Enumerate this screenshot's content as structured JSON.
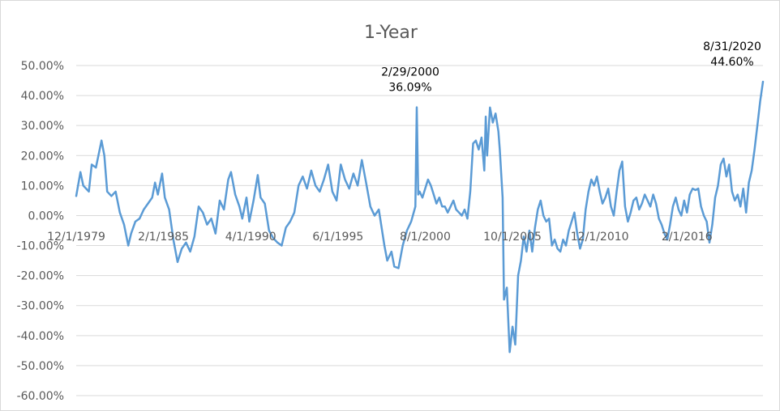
{
  "chart_data": {
    "type": "line",
    "title": "1-Year",
    "xlabel": "",
    "ylabel": "",
    "grid": true,
    "legend": "none",
    "ylim": [
      -0.6,
      0.5
    ],
    "y_ticks": [
      0.5,
      0.4,
      0.3,
      0.2,
      0.1,
      0.0,
      -0.1,
      -0.2,
      -0.3,
      -0.4,
      -0.5,
      -0.6
    ],
    "y_tick_labels": [
      "50.00%",
      "40.00%",
      "30.00%",
      "20.00%",
      "10.00%",
      "0.00%",
      "-10.00%",
      "-20.00%",
      "-30.00%",
      "-40.00%",
      "-50.00%",
      "-60.00%"
    ],
    "x_range": [
      "1979-12",
      "2020-08"
    ],
    "x_ticks": [
      "1979-12",
      "1985-02",
      "1990-04",
      "1995-06",
      "2000-08",
      "2005-10",
      "2010-12",
      "2016-02"
    ],
    "x_tick_labels": [
      "12/1/1979",
      "2/1/1985",
      "4/1/1990",
      "6/1/1995",
      "8/1/2000",
      "10/1/2005",
      "12/1/2010",
      "2/1/2016"
    ],
    "line_color": "#5b9bd5",
    "series": [
      {
        "points": [
          [
            "1979-12",
            0.065
          ],
          [
            "1980-03",
            0.145
          ],
          [
            "1980-05",
            0.1
          ],
          [
            "1980-09",
            0.08
          ],
          [
            "1980-11",
            0.17
          ],
          [
            "1981-02",
            0.16
          ],
          [
            "1981-06",
            0.25
          ],
          [
            "1981-08",
            0.2
          ],
          [
            "1981-10",
            0.08
          ],
          [
            "1982-01",
            0.065
          ],
          [
            "1982-04",
            0.08
          ],
          [
            "1982-07",
            0.01
          ],
          [
            "1982-10",
            -0.03
          ],
          [
            "1983-01",
            -0.1
          ],
          [
            "1983-03",
            -0.06
          ],
          [
            "1983-06",
            -0.02
          ],
          [
            "1983-09",
            -0.01
          ],
          [
            "1983-12",
            0.02
          ],
          [
            "1984-03",
            0.04
          ],
          [
            "1984-06",
            0.06
          ],
          [
            "1984-08",
            0.11
          ],
          [
            "1984-10",
            0.07
          ],
          [
            "1985-01",
            0.14
          ],
          [
            "1985-03",
            0.06
          ],
          [
            "1985-06",
            0.02
          ],
          [
            "1985-09",
            -0.08
          ],
          [
            "1985-12",
            -0.155
          ],
          [
            "1986-03",
            -0.11
          ],
          [
            "1986-06",
            -0.09
          ],
          [
            "1986-09",
            -0.12
          ],
          [
            "1986-12",
            -0.07
          ],
          [
            "1987-03",
            0.03
          ],
          [
            "1987-06",
            0.01
          ],
          [
            "1987-09",
            -0.03
          ],
          [
            "1987-12",
            -0.01
          ],
          [
            "1988-03",
            -0.06
          ],
          [
            "1988-06",
            0.05
          ],
          [
            "1988-09",
            0.02
          ],
          [
            "1988-12",
            0.12
          ],
          [
            "1989-02",
            0.145
          ],
          [
            "1989-05",
            0.07
          ],
          [
            "1989-08",
            0.03
          ],
          [
            "1989-10",
            -0.01
          ],
          [
            "1990-01",
            0.06
          ],
          [
            "1990-03",
            -0.02
          ],
          [
            "1990-06",
            0.05
          ],
          [
            "1990-09",
            0.135
          ],
          [
            "1990-11",
            0.06
          ],
          [
            "1991-02",
            0.04
          ],
          [
            "1991-05",
            -0.05
          ],
          [
            "1991-08",
            -0.075
          ],
          [
            "1991-11",
            -0.09
          ],
          [
            "1992-02",
            -0.1
          ],
          [
            "1992-05",
            -0.04
          ],
          [
            "1992-08",
            -0.02
          ],
          [
            "1992-11",
            0.01
          ],
          [
            "1993-02",
            0.1
          ],
          [
            "1993-05",
            0.13
          ],
          [
            "1993-08",
            0.09
          ],
          [
            "1993-11",
            0.15
          ],
          [
            "1994-02",
            0.1
          ],
          [
            "1994-05",
            0.08
          ],
          [
            "1994-08",
            0.12
          ],
          [
            "1994-11",
            0.17
          ],
          [
            "1995-02",
            0.08
          ],
          [
            "1995-05",
            0.05
          ],
          [
            "1995-08",
            0.17
          ],
          [
            "1995-11",
            0.12
          ],
          [
            "1996-02",
            0.09
          ],
          [
            "1996-05",
            0.14
          ],
          [
            "1996-08",
            0.1
          ],
          [
            "1996-11",
            0.185
          ],
          [
            "1997-02",
            0.11
          ],
          [
            "1997-05",
            0.03
          ],
          [
            "1997-08",
            0.0
          ],
          [
            "1997-11",
            0.02
          ],
          [
            "1998-03",
            -0.1
          ],
          [
            "1998-05",
            -0.15
          ],
          [
            "1998-08",
            -0.12
          ],
          [
            "1998-10",
            -0.17
          ],
          [
            "1999-01",
            -0.175
          ],
          [
            "1999-04",
            -0.1
          ],
          [
            "1999-07",
            -0.05
          ],
          [
            "1999-10",
            -0.02
          ],
          [
            "2000-01",
            0.03
          ],
          [
            "2000-02",
            0.3609
          ],
          [
            "2000-03",
            0.07
          ],
          [
            "2000-04",
            0.08
          ],
          [
            "2000-06",
            0.06
          ],
          [
            "2000-08",
            0.09
          ],
          [
            "2000-10",
            0.12
          ],
          [
            "2000-12",
            0.1
          ],
          [
            "2001-02",
            0.07
          ],
          [
            "2001-04",
            0.04
          ],
          [
            "2001-06",
            0.06
          ],
          [
            "2001-08",
            0.03
          ],
          [
            "2001-10",
            0.03
          ],
          [
            "2001-12",
            0.01
          ],
          [
            "2002-02",
            0.03
          ],
          [
            "2002-04",
            0.05
          ],
          [
            "2002-06",
            0.02
          ],
          [
            "2002-08",
            0.01
          ],
          [
            "2002-10",
            0.0
          ],
          [
            "2002-12",
            0.02
          ],
          [
            "2003-02",
            -0.01
          ],
          [
            "2003-04",
            0.08
          ],
          [
            "2003-06",
            0.24
          ],
          [
            "2003-08",
            0.25
          ],
          [
            "2003-10",
            0.22
          ],
          [
            "2003-12",
            0.26
          ],
          [
            "2004-02",
            0.15
          ],
          [
            "2004-03",
            0.33
          ],
          [
            "2004-04",
            0.2
          ],
          [
            "2004-06",
            0.36
          ],
          [
            "2004-08",
            0.31
          ],
          [
            "2004-10",
            0.34
          ],
          [
            "2004-12",
            0.28
          ],
          [
            "2005-01",
            0.22
          ],
          [
            "2005-03",
            0.06
          ],
          [
            "2005-04",
            -0.28
          ],
          [
            "2005-06",
            -0.24
          ],
          [
            "2005-08",
            -0.455
          ],
          [
            "2005-10",
            -0.37
          ],
          [
            "2005-12",
            -0.43
          ],
          [
            "2006-02",
            -0.2
          ],
          [
            "2006-04",
            -0.15
          ],
          [
            "2006-06",
            -0.07
          ],
          [
            "2006-08",
            -0.12
          ],
          [
            "2006-10",
            -0.05
          ],
          [
            "2006-12",
            -0.12
          ],
          [
            "2007-02",
            -0.04
          ],
          [
            "2007-04",
            0.02
          ],
          [
            "2007-06",
            0.05
          ],
          [
            "2007-08",
            0.0
          ],
          [
            "2007-10",
            -0.02
          ],
          [
            "2007-12",
            -0.01
          ],
          [
            "2008-02",
            -0.1
          ],
          [
            "2008-04",
            -0.08
          ],
          [
            "2008-06",
            -0.11
          ],
          [
            "2008-08",
            -0.12
          ],
          [
            "2008-10",
            -0.08
          ],
          [
            "2008-12",
            -0.1
          ],
          [
            "2009-02",
            -0.05
          ],
          [
            "2009-04",
            -0.02
          ],
          [
            "2009-06",
            0.01
          ],
          [
            "2009-08",
            -0.06
          ],
          [
            "2009-10",
            -0.11
          ],
          [
            "2009-12",
            -0.08
          ],
          [
            "2010-02",
            0.02
          ],
          [
            "2010-04",
            0.08
          ],
          [
            "2010-06",
            0.12
          ],
          [
            "2010-08",
            0.1
          ],
          [
            "2010-10",
            0.13
          ],
          [
            "2010-12",
            0.08
          ],
          [
            "2011-02",
            0.04
          ],
          [
            "2011-04",
            0.06
          ],
          [
            "2011-06",
            0.09
          ],
          [
            "2011-08",
            0.03
          ],
          [
            "2011-10",
            0.0
          ],
          [
            "2011-12",
            0.08
          ],
          [
            "2012-02",
            0.15
          ],
          [
            "2012-04",
            0.18
          ],
          [
            "2012-06",
            0.03
          ],
          [
            "2012-08",
            -0.02
          ],
          [
            "2012-10",
            0.01
          ],
          [
            "2012-12",
            0.05
          ],
          [
            "2013-02",
            0.06
          ],
          [
            "2013-04",
            0.02
          ],
          [
            "2013-06",
            0.04
          ],
          [
            "2013-08",
            0.07
          ],
          [
            "2013-10",
            0.05
          ],
          [
            "2013-12",
            0.03
          ],
          [
            "2014-02",
            0.07
          ],
          [
            "2014-04",
            0.04
          ],
          [
            "2014-06",
            -0.01
          ],
          [
            "2014-08",
            -0.03
          ],
          [
            "2014-10",
            -0.06
          ],
          [
            "2014-12",
            -0.08
          ],
          [
            "2015-02",
            -0.03
          ],
          [
            "2015-04",
            0.03
          ],
          [
            "2015-06",
            0.06
          ],
          [
            "2015-08",
            0.02
          ],
          [
            "2015-10",
            0.0
          ],
          [
            "2015-12",
            0.05
          ],
          [
            "2016-02",
            0.01
          ],
          [
            "2016-04",
            0.07
          ],
          [
            "2016-06",
            0.09
          ],
          [
            "2016-08",
            0.085
          ],
          [
            "2016-10",
            0.09
          ],
          [
            "2016-12",
            0.03
          ],
          [
            "2017-02",
            0.0
          ],
          [
            "2017-04",
            -0.02
          ],
          [
            "2017-06",
            -0.09
          ],
          [
            "2017-08",
            -0.03
          ],
          [
            "2017-10",
            0.06
          ],
          [
            "2017-12",
            0.1
          ],
          [
            "2018-02",
            0.17
          ],
          [
            "2018-04",
            0.19
          ],
          [
            "2018-06",
            0.13
          ],
          [
            "2018-08",
            0.17
          ],
          [
            "2018-10",
            0.08
          ],
          [
            "2018-12",
            0.05
          ],
          [
            "2019-02",
            0.07
          ],
          [
            "2019-04",
            0.03
          ],
          [
            "2019-06",
            0.09
          ],
          [
            "2019-08",
            0.01
          ],
          [
            "2019-10",
            0.11
          ],
          [
            "2019-12",
            0.15
          ],
          [
            "2020-02",
            0.22
          ],
          [
            "2020-04",
            0.3
          ],
          [
            "2020-06",
            0.38
          ],
          [
            "2020-08",
            0.446
          ]
        ]
      }
    ],
    "annotations": [
      {
        "x": "2000-02",
        "y": 0.3609,
        "date_label": "2/29/2000",
        "value_label": "36.09%"
      },
      {
        "x": "2020-08",
        "y": 0.446,
        "date_label": "8/31/2020",
        "value_label": "44.60%"
      }
    ]
  }
}
